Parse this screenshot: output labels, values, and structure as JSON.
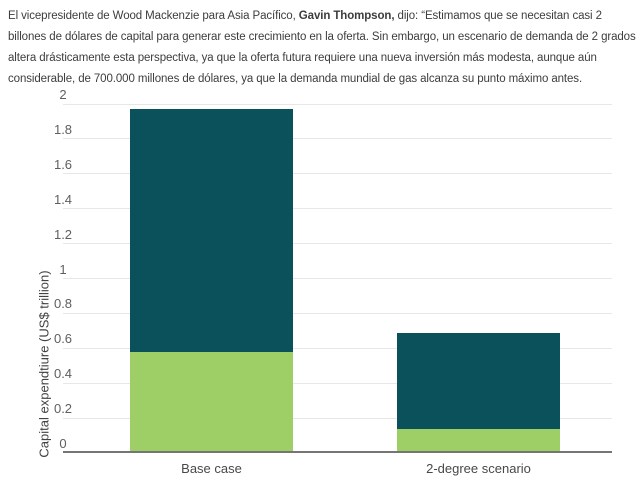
{
  "intro": {
    "text_before_name": "El vicepresidente de Wood Mackenzie para Asia Pacífico, ",
    "name_bold": "Gavin Thompson,",
    "text_after_name": " dijo: “Estimamos que se necesitan casi 2 billones de dólares de capital para generar este crecimiento en la oferta. Sin embargo, un escenario de demanda de 2 grados altera drásticamente esta perspectiva, ya que la oferta futura requiere una nueva inversión más modesta, aunque aún considerable, de 700.000 millones de dólares, ya que la demanda mundial de gas alcanza su punto máximo antes."
  },
  "chart_data": {
    "type": "bar",
    "stacked": true,
    "title": "",
    "xlabel": "",
    "ylabel": "Capital expendtiure (US$ trillion)",
    "categories": [
      "Base case",
      "2-degree scenario"
    ],
    "series": [
      {
        "name": "bottom-segment-green",
        "color": "#9dcf66",
        "values": [
          0.58,
          0.14
        ]
      },
      {
        "name": "top-segment-teal",
        "color": "#0b515b",
        "values": [
          1.39,
          0.55
        ]
      }
    ],
    "totals": [
      1.97,
      0.69
    ],
    "ylim": [
      0,
      2
    ],
    "ytick_labels": [
      "0",
      "0.2",
      "0.4",
      "0.6",
      "0.8",
      "1",
      "1.2",
      "1.4",
      "1.6",
      "1.8",
      "2"
    ],
    "grid": true,
    "legend": false,
    "colors": {
      "gridline": "#e7e7e7",
      "axis_line": "#757575",
      "tick_text": "#5e5e5e",
      "category_text": "#484848"
    }
  }
}
